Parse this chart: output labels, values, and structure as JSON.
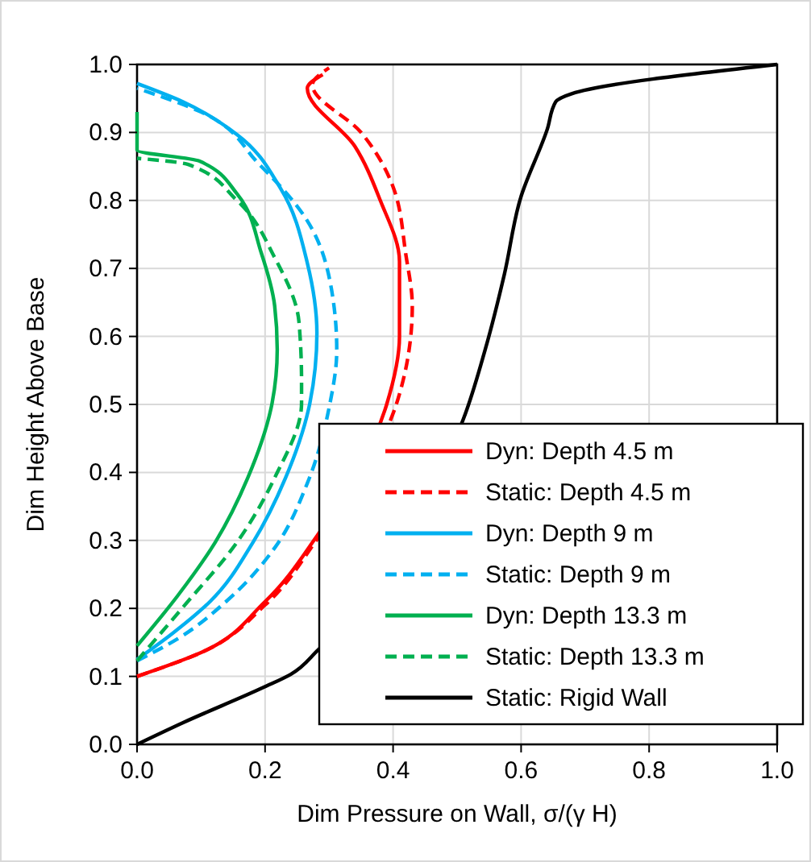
{
  "chart_data": {
    "type": "line",
    "xlabel": "Dim Pressure on Wall, σ/(γ H)",
    "ylabel": "Dim Height Above Base",
    "xlim": [
      0,
      1
    ],
    "ylim": [
      0,
      1
    ],
    "xticks": [
      {
        "value": 0,
        "label": "0.0"
      },
      0.2,
      0.4,
      0.6,
      0.8,
      {
        "value": 1,
        "label": "1.0"
      }
    ],
    "yticks": [
      {
        "value": 0,
        "label": "0.0"
      },
      0.1,
      0.2,
      0.3,
      0.4,
      0.5,
      0.6,
      0.7,
      0.8,
      0.9,
      {
        "value": 1,
        "label": "1.0"
      }
    ],
    "grid": true,
    "legend": "bottom right",
    "marker": "none",
    "series": [
      {
        "name": "Dyn: Depth 4.5 m",
        "color": "#ff0000",
        "line_style": "solid",
        "x": [
          0,
          0.1,
          0.2,
          0.28,
          0.39,
          0.41,
          0.41,
          0.38,
          0.34,
          0.266,
          0.29
        ],
        "values": [
          0.1,
          0.135,
          0.21,
          0.305,
          0.5,
          0.6,
          0.71,
          0.8,
          0.88,
          0.965,
          0.985
        ]
      },
      {
        "name": "Static: Depth 4.5 m",
        "color": "#ff0000",
        "line_style": "dashed",
        "x": [
          0,
          0.1,
          0.2,
          0.28,
          0.405,
          0.43,
          0.42,
          0.4,
          0.35,
          0.274,
          0.3
        ],
        "values": [
          0.1,
          0.135,
          0.205,
          0.3,
          0.5,
          0.645,
          0.72,
          0.82,
          0.9,
          0.97,
          0.995
        ]
      },
      {
        "name": "Dyn: Depth 9 m",
        "color": "#00b0f0",
        "line_style": "solid",
        "x": [
          0,
          0.055,
          0.114,
          0.181,
          0.232,
          0.27,
          0.281,
          0.266,
          0.224,
          0.156,
          0.072,
          0
        ],
        "values": [
          0.125,
          0.163,
          0.21,
          0.297,
          0.392,
          0.502,
          0.605,
          0.708,
          0.818,
          0.897,
          0.945,
          0.972
        ]
      },
      {
        "name": "Static: Depth 9 m",
        "color": "#00b0f0",
        "line_style": "dashed",
        "x": [
          0,
          0.063,
          0.139,
          0.215,
          0.266,
          0.3,
          0.312,
          0.304,
          0.266,
          0.19,
          0.1,
          0
        ],
        "values": [
          0.123,
          0.155,
          0.21,
          0.289,
          0.384,
          0.495,
          0.58,
          0.668,
          0.77,
          0.854,
          0.93,
          0.965
        ]
      },
      {
        "name": "Dyn: Depth 13.3 m",
        "color": "#00b050",
        "line_style": "solid",
        "x": [
          0,
          0.063,
          0.122,
          0.173,
          0.211,
          0.219,
          0.215,
          0.194,
          0.156,
          0.097,
          0,
          0
        ],
        "values": [
          0.145,
          0.218,
          0.297,
          0.392,
          0.502,
          0.581,
          0.645,
          0.723,
          0.81,
          0.858,
          0.874,
          0.93
        ]
      },
      {
        "name": "Static: Depth 13.3 m",
        "color": "#00b050",
        "line_style": "dashed",
        "x": [
          0,
          0.072,
          0.156,
          0.215,
          0.257,
          0.257,
          0.253,
          0.215,
          0.156,
          0.08,
          0
        ],
        "values": [
          0.123,
          0.202,
          0.297,
          0.392,
          0.502,
          0.534,
          0.621,
          0.716,
          0.8,
          0.853,
          0.862
        ]
      },
      {
        "name": "Static: Rigid Wall",
        "color": "#000000",
        "line_style": "solid",
        "x": [
          0,
          0.072,
          0.198,
          0.24,
          0.283,
          0.51,
          0.544,
          0.574,
          0.599,
          0.641,
          0.654,
          0.679,
          1
        ],
        "values": [
          0,
          0.032,
          0.084,
          0.103,
          0.139,
          0.479,
          0.581,
          0.692,
          0.803,
          0.905,
          0.945,
          0.957,
          1
        ]
      }
    ]
  }
}
